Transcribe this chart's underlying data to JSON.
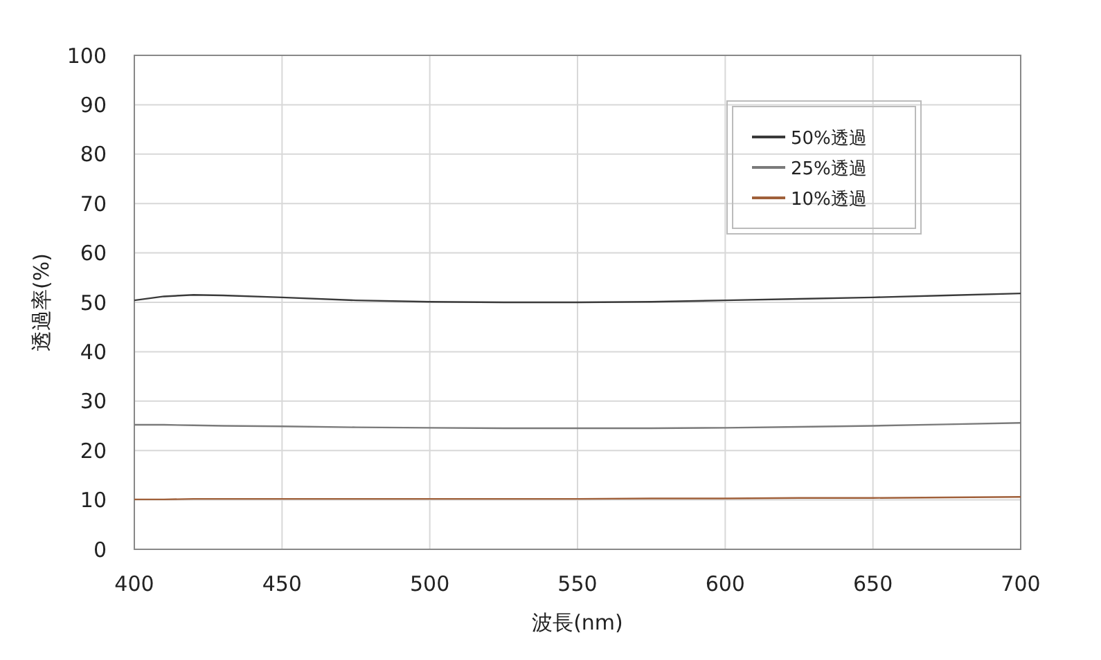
{
  "chart_data": {
    "type": "line",
    "xlabel": "波長(nm)",
    "ylabel": "透過率(%)",
    "x": [
      400,
      410,
      420,
      430,
      450,
      475,
      500,
      525,
      550,
      575,
      600,
      625,
      650,
      675,
      700
    ],
    "series": [
      {
        "name": "50%透過",
        "color": "#3a3a3a",
        "values": [
          50.4,
          51.2,
          51.5,
          51.4,
          51.0,
          50.4,
          50.1,
          50.0,
          50.0,
          50.1,
          50.4,
          50.7,
          51.0,
          51.4,
          51.8
        ]
      },
      {
        "name": "25%透過",
        "color": "#7a7a7a",
        "values": [
          25.2,
          25.2,
          25.1,
          25.0,
          24.9,
          24.7,
          24.6,
          24.5,
          24.5,
          24.5,
          24.6,
          24.8,
          25.0,
          25.3,
          25.6
        ]
      },
      {
        "name": "10%透過",
        "color": "#a0603a",
        "values": [
          10.1,
          10.1,
          10.2,
          10.2,
          10.2,
          10.2,
          10.2,
          10.2,
          10.2,
          10.3,
          10.3,
          10.4,
          10.4,
          10.5,
          10.6
        ]
      }
    ],
    "xlim": [
      400,
      700
    ],
    "xticks": [
      400,
      450,
      500,
      550,
      600,
      650,
      700
    ],
    "ylim": [
      0,
      100
    ],
    "yticks": [
      0,
      10,
      20,
      30,
      40,
      50,
      60,
      70,
      80,
      90,
      100
    ],
    "grid": true,
    "legend": "top right",
    "line_style": "solid"
  }
}
